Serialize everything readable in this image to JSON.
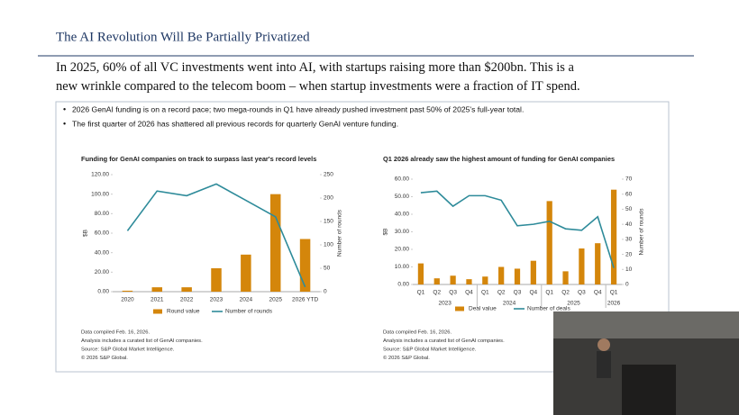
{
  "slide_title": "The AI Revolution Will Be Partially Privatized",
  "headline": "In 2025, 60% of all VC investments went into AI, with startups raising more than $200bn. This is a new wrinkle compared to the telecom boom – when startup investments were a fraction of IT spend.",
  "bullets": [
    "2026 GenAI funding is on a record pace; two mega-rounds in Q1 have already pushed investment past 50% of 2025's full-year total.",
    "The first quarter of 2026 has shattered all previous records for quarterly GenAI venture funding."
  ],
  "chart_data": [
    {
      "type": "bar",
      "title": "Funding for GenAI companies on track to surpass last year's record levels",
      "categories": [
        "2020",
        "2021",
        "2022",
        "2023",
        "2024",
        "2025",
        "2026 YTD"
      ],
      "ylabel": "$B",
      "y2label": "Number of rounds",
      "ylim": [
        0,
        120
      ],
      "yticks": [
        {
          "value": 0,
          "label": "0.00"
        },
        {
          "value": 20,
          "label": "20.00"
        },
        {
          "value": 40,
          "label": "40.00"
        },
        {
          "value": 60,
          "label": "60.00"
        },
        {
          "value": 80,
          "label": "80.00"
        },
        {
          "value": 100,
          "label": "100.00"
        },
        {
          "value": 120,
          "label": "120.00"
        }
      ],
      "y2lim": [
        0,
        250
      ],
      "y2ticks": [
        0,
        50,
        100,
        150,
        200,
        250
      ],
      "series": [
        {
          "name": "Round value",
          "type": "bar",
          "color": "#d4860b",
          "values": [
            1,
            4.5,
            4.5,
            24,
            38,
            100,
            54
          ]
        },
        {
          "name": "Number of rounds",
          "type": "line",
          "axis": "y2",
          "color": "#2e8b9a",
          "values": [
            130,
            215,
            205,
            230,
            195,
            160,
            10
          ]
        }
      ],
      "notes": [
        "Data compiled Feb. 16, 2026.",
        "Analysis includes a curated list of GenAI companies.",
        "Source: S&P Global Market Intelligence.",
        "© 2026 S&P Global."
      ]
    },
    {
      "type": "bar",
      "title": "Q1 2026 already saw the highest amount of funding for GenAI companies",
      "categories": [
        "Q1",
        "Q2",
        "Q3",
        "Q4",
        "Q1",
        "Q2",
        "Q3",
        "Q4",
        "Q1",
        "Q2",
        "Q3",
        "Q4",
        "Q1"
      ],
      "category_groups": [
        "2023",
        null,
        null,
        null,
        "2024",
        null,
        null,
        null,
        "2025",
        null,
        null,
        null,
        "2026"
      ],
      "ylabel": "$B",
      "y2label": "Number of rounds",
      "ylim": [
        0,
        60
      ],
      "yticks": [
        {
          "value": 0,
          "label": "0.00"
        },
        {
          "value": 10,
          "label": "10.00"
        },
        {
          "value": 20,
          "label": "20.00"
        },
        {
          "value": 30,
          "label": "30.00"
        },
        {
          "value": 40,
          "label": "40.00"
        },
        {
          "value": 50,
          "label": "50.00"
        },
        {
          "value": 60,
          "label": "60.00"
        }
      ],
      "y2lim": [
        0,
        70
      ],
      "y2ticks": [
        0,
        10,
        20,
        30,
        40,
        50,
        60,
        70
      ],
      "series": [
        {
          "name": "Deal value",
          "type": "bar",
          "color": "#d4860b",
          "values": [
            12,
            3.5,
            5,
            3,
            4.5,
            10,
            9,
            13.5,
            47.5,
            7.5,
            20.5,
            23.5,
            54
          ]
        },
        {
          "name": "Number of deals",
          "type": "line",
          "axis": "y2",
          "color": "#2e8b9a",
          "values": [
            61,
            62,
            52,
            59,
            59,
            56,
            39,
            40,
            42,
            37,
            36,
            45,
            11
          ]
        }
      ],
      "notes": [
        "Data compiled Feb. 16, 2026.",
        "Analysis includes a curated list of GenAI companies.",
        "Source: S&P Global Market Intelligence.",
        "© 2026 S&P Global."
      ]
    }
  ]
}
